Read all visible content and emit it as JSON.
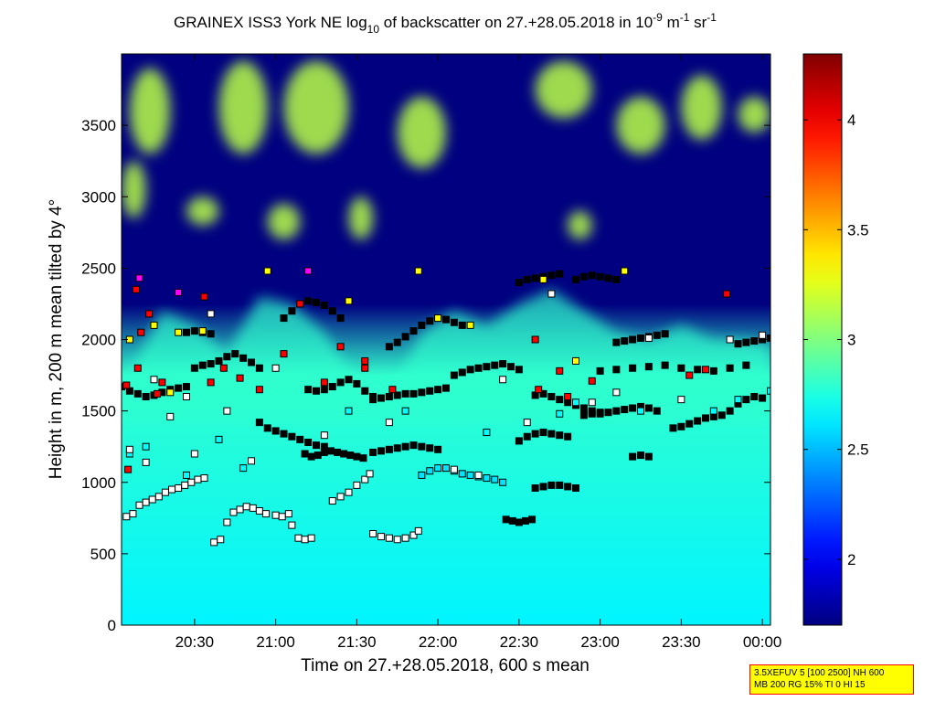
{
  "chart_data": {
    "type": "heatmap",
    "title": {
      "part1": "GRAINEX ISS3 York NE log",
      "sub1": "10",
      "part2": " of backscatter on 27.+28.05.2018 in 10",
      "sup1": "-9",
      "part3": " m",
      "sup2": "-1",
      "part4": " sr",
      "sup3": "-1"
    },
    "xlabel": "Time on 27.+28.05.2018, 600 s mean",
    "ylabel": "Height in m, 200 m mean tilted by 4°",
    "xlim": [
      20.05,
      24.05
    ],
    "ylim": [
      0,
      4000
    ],
    "x_ticks": [
      {
        "value": 20.5,
        "label": "20:30"
      },
      {
        "value": 21.0,
        "label": "21:00"
      },
      {
        "value": 21.5,
        "label": "21:30"
      },
      {
        "value": 22.0,
        "label": "22:00"
      },
      {
        "value": 22.5,
        "label": "22:30"
      },
      {
        "value": 23.0,
        "label": "23:00"
      },
      {
        "value": 23.5,
        "label": "23:30"
      },
      {
        "value": 24.0,
        "label": "00:00"
      }
    ],
    "y_ticks": [
      {
        "value": 0,
        "label": "0"
      },
      {
        "value": 500,
        "label": "500"
      },
      {
        "value": 1000,
        "label": "1000"
      },
      {
        "value": 1500,
        "label": "1500"
      },
      {
        "value": 2000,
        "label": "2000"
      },
      {
        "value": 2500,
        "label": "2500"
      },
      {
        "value": 3000,
        "label": "3000"
      },
      {
        "value": 3500,
        "label": "3500"
      }
    ],
    "colorbar": {
      "range": [
        1.7,
        4.3
      ],
      "colormap": "jet",
      "ticks": [
        {
          "value": 2.0,
          "label": "2"
        },
        {
          "value": 2.5,
          "label": "2.5"
        },
        {
          "value": 3.0,
          "label": "3"
        },
        {
          "value": 3.5,
          "label": "3.5"
        },
        {
          "value": 4.0,
          "label": "4"
        }
      ]
    },
    "background_levels": {
      "near_ground": 2.65,
      "boundary_layer_top": 2.8,
      "free_troposphere": 1.7,
      "cloud_patches": 3.15
    },
    "boundary_layer_top": {
      "x": [
        20.05,
        20.3,
        20.5,
        20.7,
        20.9,
        21.1,
        21.3,
        21.5,
        21.7,
        21.9,
        22.1,
        22.3,
        22.5,
        22.7,
        22.9,
        23.1,
        23.3,
        23.5,
        23.7,
        23.9,
        24.05
      ],
      "y": [
        1650,
        2200,
        2100,
        1900,
        2300,
        2250,
        2050,
        1700,
        1600,
        2050,
        2200,
        2100,
        2250,
        2350,
        2200,
        2050,
        2000,
        2100,
        2000,
        2000,
        1950
      ]
    },
    "cloud_patches": [
      {
        "x": [
          20.1,
          20.35
        ],
        "y": [
          3300,
          3900
        ]
      },
      {
        "x": [
          20.65,
          20.95
        ],
        "y": [
          3300,
          3950
        ]
      },
      {
        "x": [
          21.05,
          21.45
        ],
        "y": [
          3300,
          3950
        ]
      },
      {
        "x": [
          21.75,
          22.05
        ],
        "y": [
          3200,
          3700
        ]
      },
      {
        "x": [
          22.6,
          22.95
        ],
        "y": [
          3550,
          3950
        ]
      },
      {
        "x": [
          23.1,
          23.4
        ],
        "y": [
          3300,
          3700
        ]
      },
      {
        "x": [
          23.5,
          23.75
        ],
        "y": [
          3400,
          3850
        ]
      },
      {
        "x": [
          23.85,
          24.05
        ],
        "y": [
          3450,
          3700
        ]
      },
      {
        "x": [
          20.05,
          20.2
        ],
        "y": [
          2850,
          3250
        ]
      },
      {
        "x": [
          20.45,
          20.65
        ],
        "y": [
          2800,
          3000
        ]
      },
      {
        "x": [
          20.95,
          21.15
        ],
        "y": [
          2700,
          2950
        ]
      },
      {
        "x": [
          21.45,
          21.6
        ],
        "y": [
          2700,
          3000
        ]
      },
      {
        "x": [
          22.8,
          22.95
        ],
        "y": [
          2700,
          2900
        ]
      }
    ],
    "layer_series": [
      {
        "marker_color": "#ffffff",
        "x": [
          20.08,
          20.12,
          20.16,
          20.2,
          20.24,
          20.28,
          20.32,
          20.36,
          20.4,
          20.44,
          20.48,
          20.52,
          20.56
        ],
        "y": [
          760,
          780,
          840,
          860,
          880,
          900,
          930,
          950,
          960,
          980,
          1000,
          1020,
          1030
        ]
      },
      {
        "marker_color": "#ffffff",
        "x": [
          20.62,
          20.66,
          20.7,
          20.74,
          20.78,
          20.82,
          20.86,
          20.9,
          20.94,
          21.0,
          21.04,
          21.08
        ],
        "y": [
          580,
          600,
          720,
          790,
          810,
          830,
          820,
          800,
          780,
          770,
          760,
          780
        ]
      },
      {
        "marker_color": "#ffffff",
        "x": [
          21.1,
          21.14,
          21.18,
          21.22
        ],
        "y": [
          700,
          610,
          600,
          610
        ]
      },
      {
        "marker_color": "#ffffff",
        "x": [
          21.35,
          21.4,
          21.45,
          21.5,
          21.55,
          21.58
        ],
        "y": [
          870,
          900,
          930,
          980,
          1020,
          1060
        ]
      },
      {
        "marker_color": "#ffffff",
        "x": [
          21.6,
          21.65,
          21.7,
          21.75,
          21.8,
          21.85,
          21.88
        ],
        "y": [
          640,
          620,
          610,
          600,
          610,
          630,
          660
        ]
      },
      {
        "marker_color": "#00e5ff",
        "x": [
          21.9,
          21.95,
          22.0,
          22.05,
          22.1,
          22.15,
          22.2,
          22.25,
          22.3,
          22.35,
          22.4
        ],
        "y": [
          1050,
          1080,
          1100,
          1100,
          1080,
          1060,
          1050,
          1040,
          1030,
          1020,
          1000
        ]
      },
      {
        "marker_color": "#000000",
        "x": [
          21.18,
          21.22,
          21.26,
          21.3,
          21.34,
          21.38,
          21.42,
          21.46,
          21.5,
          21.54
        ],
        "y": [
          1200,
          1180,
          1190,
          1210,
          1220,
          1210,
          1200,
          1190,
          1180,
          1170
        ]
      },
      {
        "marker_color": "#000000",
        "x": [
          21.6,
          21.65,
          21.7,
          21.75,
          21.8,
          21.85,
          21.9,
          21.95,
          22.0
        ],
        "y": [
          1210,
          1220,
          1230,
          1240,
          1250,
          1260,
          1250,
          1240,
          1230
        ]
      },
      {
        "marker_color": "#000000",
        "x": [
          22.42,
          22.46,
          22.5,
          22.54,
          22.58
        ],
        "y": [
          740,
          730,
          720,
          730,
          740
        ]
      },
      {
        "marker_color": "#000000",
        "x": [
          22.6,
          22.65,
          22.7,
          22.75,
          22.8,
          22.85
        ],
        "y": [
          960,
          970,
          980,
          980,
          970,
          960
        ]
      },
      {
        "marker_color": "#000000",
        "x": [
          22.5,
          22.55,
          22.6,
          22.65,
          22.7,
          22.75,
          22.8
        ],
        "y": [
          1290,
          1320,
          1340,
          1350,
          1340,
          1330,
          1320
        ]
      },
      {
        "marker_color": "#000000",
        "x": [
          22.9,
          22.95,
          23.0,
          23.05,
          23.1,
          23.15,
          23.2,
          23.25,
          23.3,
          23.35
        ],
        "y": [
          1470,
          1480,
          1480,
          1490,
          1500,
          1510,
          1520,
          1530,
          1520,
          1500
        ]
      },
      {
        "marker_color": "#000000",
        "x": [
          23.45,
          23.5,
          23.55,
          23.6,
          23.65,
          23.7,
          23.75,
          23.8,
          23.85,
          23.9,
          23.95,
          24.0
        ],
        "y": [
          1380,
          1390,
          1410,
          1430,
          1450,
          1460,
          1470,
          1500,
          1550,
          1580,
          1600,
          1590
        ]
      },
      {
        "marker_color": "#000000",
        "x": [
          23.2,
          23.25,
          23.3
        ],
        "y": [
          1180,
          1190,
          1180
        ]
      },
      {
        "marker_color": "#000000",
        "x": [
          20.05,
          20.1,
          20.15,
          20.2,
          20.25,
          20.3,
          20.35,
          20.4,
          20.45
        ],
        "y": [
          1670,
          1640,
          1620,
          1600,
          1610,
          1630,
          1650,
          1660,
          1670
        ]
      },
      {
        "marker_color": "#000000",
        "x": [
          20.5,
          20.55,
          20.6,
          20.65,
          20.7,
          20.75,
          20.8,
          20.85,
          20.9
        ],
        "y": [
          1800,
          1820,
          1830,
          1850,
          1880,
          1900,
          1870,
          1840,
          1800
        ]
      },
      {
        "marker_color": "#000000",
        "x": [
          20.9,
          20.95,
          21.0,
          21.05,
          21.1,
          21.15,
          21.2,
          21.25,
          21.3
        ],
        "y": [
          1420,
          1380,
          1360,
          1340,
          1320,
          1300,
          1280,
          1260,
          1250
        ]
      },
      {
        "marker_color": "#000000",
        "x": [
          21.2,
          21.25,
          21.3,
          21.35,
          21.4,
          21.45,
          21.5,
          21.55,
          21.6
        ],
        "y": [
          1650,
          1640,
          1650,
          1670,
          1700,
          1720,
          1690,
          1640,
          1600
        ]
      },
      {
        "marker_color": "#000000",
        "x": [
          21.6,
          21.65,
          21.7,
          21.75,
          21.8,
          21.85,
          21.9,
          21.95,
          22.0,
          22.05
        ],
        "y": [
          1580,
          1590,
          1600,
          1610,
          1620,
          1620,
          1630,
          1640,
          1650,
          1660
        ]
      },
      {
        "marker_color": "#000000",
        "x": [
          22.1,
          22.15,
          22.2,
          22.25,
          22.3,
          22.35,
          22.4,
          22.45,
          22.5
        ],
        "y": [
          1750,
          1770,
          1790,
          1800,
          1810,
          1820,
          1830,
          1810,
          1790
        ]
      },
      {
        "marker_color": "#000000",
        "x": [
          22.6,
          22.65,
          22.7,
          22.75,
          22.8,
          22.85,
          22.9,
          22.95,
          23.0
        ],
        "y": [
          1610,
          1620,
          1600,
          1580,
          1560,
          1540,
          1520,
          1500,
          1490
        ]
      },
      {
        "marker_color": "#000000",
        "x": [
          23.0,
          23.1,
          23.2,
          23.3,
          23.4,
          23.5,
          23.6,
          23.7,
          23.8,
          23.9
        ],
        "y": [
          1780,
          1790,
          1800,
          1810,
          1820,
          1800,
          1790,
          1780,
          1800,
          1820
        ]
      },
      {
        "marker_color": "#000000",
        "x": [
          21.05,
          21.1,
          21.15,
          21.2,
          21.25,
          21.3,
          21.35,
          21.4
        ],
        "y": [
          2150,
          2200,
          2250,
          2270,
          2260,
          2240,
          2200,
          2150
        ]
      },
      {
        "marker_color": "#000000",
        "x": [
          21.7,
          21.75,
          21.8,
          21.85,
          21.9,
          21.95,
          22.0,
          22.05,
          22.1,
          22.15
        ],
        "y": [
          1950,
          1980,
          2020,
          2060,
          2100,
          2130,
          2150,
          2140,
          2120,
          2100
        ]
      },
      {
        "marker_color": "#000000",
        "x": [
          22.5,
          22.55,
          22.6,
          22.65,
          22.7,
          22.75
        ],
        "y": [
          2400,
          2420,
          2430,
          2440,
          2450,
          2460
        ]
      },
      {
        "marker_color": "#000000",
        "x": [
          22.85,
          22.9,
          22.95,
          23.0,
          23.05,
          23.1
        ],
        "y": [
          2420,
          2440,
          2450,
          2440,
          2430,
          2420
        ]
      },
      {
        "marker_color": "#000000",
        "x": [
          23.1,
          23.15,
          23.2,
          23.25,
          23.3,
          23.35,
          23.4
        ],
        "y": [
          1980,
          1990,
          2000,
          2010,
          2020,
          2030,
          2040
        ]
      },
      {
        "marker_color": "#000000",
        "x": [
          23.85,
          23.9,
          23.95,
          24.0,
          24.05
        ],
        "y": [
          1970,
          1980,
          1990,
          2000,
          2010
        ]
      },
      {
        "marker_color": "#000000",
        "x": [
          20.45,
          20.5,
          20.55,
          20.6
        ],
        "y": [
          2050,
          2060,
          2050,
          2040
        ]
      },
      {
        "marker_color": "#ff0000",
        "x": [
          20.08,
          20.14,
          20.22,
          20.3,
          20.56,
          20.68,
          20.9,
          21.15,
          21.4,
          21.55,
          21.72,
          22.62,
          22.8,
          22.95,
          23.55,
          23.65,
          23.78,
          20.17,
          20.27,
          20.6,
          21.05,
          21.3,
          22.6,
          22.75,
          20.15,
          20.78,
          21.55,
          20.09
        ],
        "y": [
          1680,
          2350,
          2180,
          1700,
          2300,
          1800,
          1650,
          2250,
          1950,
          1850,
          1650,
          1650,
          1600,
          1710,
          1750,
          1790,
          2320,
          2050,
          1620,
          1700,
          1900,
          1700,
          2000,
          1780,
          1800,
          1730,
          1800,
          1090
        ]
      },
      {
        "marker_color": "#ffff00",
        "x": [
          20.1,
          20.25,
          20.55,
          20.95,
          21.45,
          21.88,
          22.0,
          22.2,
          22.65,
          22.85,
          23.15,
          20.4,
          20.35
        ],
        "y": [
          2000,
          2100,
          2060,
          2480,
          2270,
          2480,
          2150,
          2100,
          2420,
          1850,
          2480,
          2050,
          1630
        ]
      },
      {
        "marker_color": "#ff00ff",
        "x": [
          20.16,
          20.4,
          21.2
        ],
        "y": [
          2430,
          2330,
          2480
        ]
      },
      {
        "marker_color": "#00ffff",
        "x": [
          20.1,
          20.2,
          20.45,
          20.65,
          20.8,
          21.45,
          21.8,
          22.3,
          22.75,
          22.85,
          23.25,
          23.7,
          23.85,
          24.05
        ],
        "y": [
          1200,
          1250,
          1050,
          1300,
          1100,
          1500,
          1500,
          1350,
          1480,
          1560,
          1500,
          1500,
          1580,
          1640
        ]
      },
      {
        "marker_color": "#ffffff",
        "x": [
          20.1,
          20.2,
          20.5,
          20.7,
          20.85,
          21.0,
          21.3,
          21.7,
          22.1,
          22.25,
          22.4,
          22.55,
          22.7,
          22.95,
          23.1,
          23.3,
          23.5,
          23.8,
          24.0,
          20.25,
          20.45,
          20.6,
          20.35
        ],
        "y": [
          1230,
          1140,
          1200,
          1500,
          1150,
          1800,
          1330,
          1420,
          1090,
          1050,
          1720,
          1420,
          2320,
          1560,
          1630,
          2010,
          1580,
          2000,
          2030,
          1720,
          1600,
          2180,
          1460
        ]
      }
    ],
    "annotation_lines": [
      "3.5XEFUV 5 [100 2500] NH 600",
      "MB 200 RG 15% TI 0 HI 15"
    ]
  }
}
